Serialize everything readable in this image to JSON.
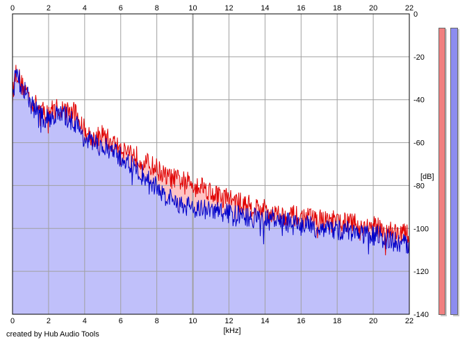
{
  "footer": {
    "credit": "created by Hub Audio Tools"
  },
  "colors": {
    "plot_bg": "#ffffff",
    "grid": "#a0a0a0",
    "channel_left": "#e00000",
    "channel_right": "#0000c8",
    "fill_left": "#ffc4c4",
    "fill_right": "#c0c0fa",
    "meter_left": "#f08080",
    "meter_right": "#8c8cf0"
  },
  "meters": [
    {
      "channel": "left",
      "level": 0.0
    },
    {
      "channel": "right",
      "level": 0.0
    }
  ],
  "chart_data": {
    "type": "area",
    "title": "",
    "xlabel": "[kHz]",
    "ylabel": "[dB]",
    "xlim": [
      0,
      22
    ],
    "ylim": [
      -140,
      0
    ],
    "x_ticks": [
      "0",
      "2",
      "4",
      "6",
      "8",
      "10",
      "12",
      "14",
      "16",
      "18",
      "20",
      "22"
    ],
    "y_ticks": [
      "0",
      "-20",
      "-40",
      "-60",
      "-80",
      "-100",
      "-120",
      "-140"
    ],
    "grid": true,
    "series": [
      {
        "color": "#e00000",
        "x": [
          0,
          0.2,
          0.5,
          0.8,
          1,
          1.2,
          1.5,
          1.8,
          2,
          2.5,
          3,
          3.5,
          4,
          4.5,
          5,
          5.5,
          6,
          6.5,
          7,
          7.5,
          8,
          8.5,
          9,
          9.5,
          10,
          10.5,
          11,
          11.5,
          12,
          12.5,
          13,
          13.5,
          14,
          14.5,
          15,
          15.5,
          16,
          16.5,
          17,
          17.5,
          18,
          18.5,
          19,
          19.5,
          20,
          20.5,
          21,
          21.5,
          22
        ],
        "values": [
          -38,
          -26,
          -33,
          -36,
          -40,
          -42,
          -44,
          -46,
          -45,
          -44,
          -45,
          -46,
          -54,
          -58,
          -56,
          -60,
          -62,
          -64,
          -67,
          -70,
          -72,
          -76,
          -77,
          -78,
          -79,
          -80,
          -83,
          -85,
          -86,
          -88,
          -89,
          -90,
          -91,
          -93,
          -94,
          -94,
          -95,
          -95,
          -96,
          -96,
          -97,
          -97,
          -98,
          -99,
          -99,
          -100,
          -101,
          -102,
          -103
        ]
      },
      {
        "color": "#0000c8",
        "x": [
          0,
          0.2,
          0.5,
          0.8,
          1,
          1.2,
          1.5,
          1.8,
          2,
          2.5,
          3,
          3.5,
          4,
          4.5,
          5,
          5.5,
          6,
          6.5,
          7,
          7.5,
          8,
          8.5,
          9,
          9.5,
          10,
          10.5,
          11,
          11.5,
          12,
          12.5,
          13,
          13.5,
          14,
          14.5,
          15,
          15.5,
          16,
          16.5,
          17,
          17.5,
          18,
          18.5,
          19,
          19.5,
          20,
          20.5,
          21,
          21.5,
          22
        ],
        "values": [
          -38,
          -26,
          -34,
          -38,
          -42,
          -44,
          -47,
          -50,
          -48,
          -47,
          -48,
          -51,
          -58,
          -61,
          -62,
          -64,
          -67,
          -70,
          -74,
          -77,
          -81,
          -85,
          -88,
          -89,
          -90,
          -91,
          -92,
          -92,
          -93,
          -94,
          -95,
          -95,
          -96,
          -96,
          -97,
          -98,
          -99,
          -99,
          -100,
          -100,
          -101,
          -101,
          -102,
          -103,
          -103,
          -104,
          -106,
          -107,
          -108
        ]
      }
    ]
  }
}
